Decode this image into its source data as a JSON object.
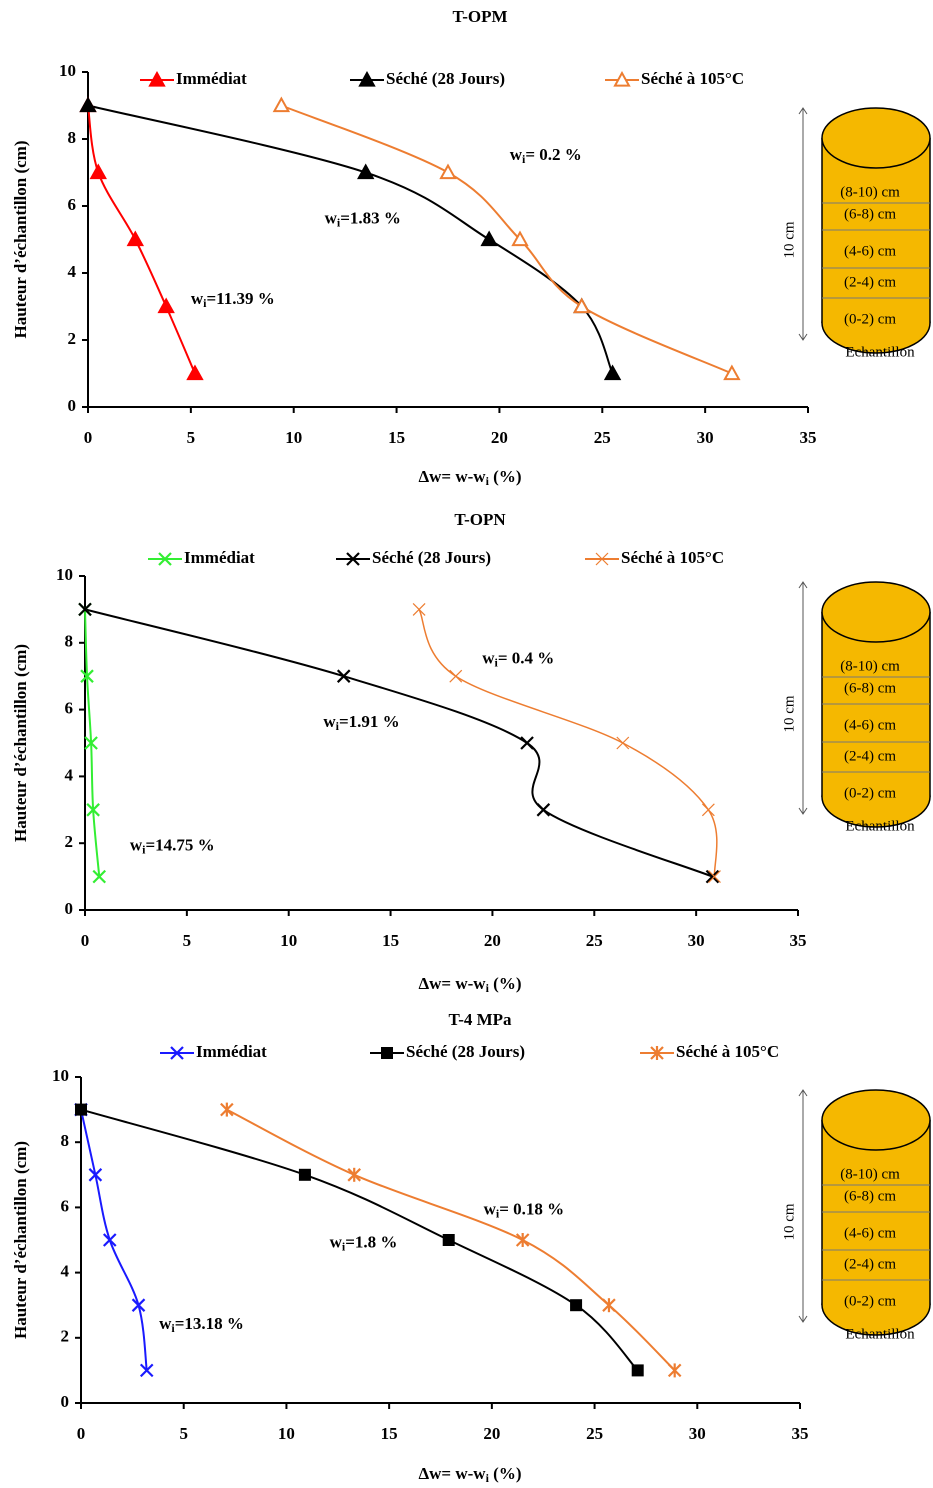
{
  "chart_data": [
    {
      "type": "line",
      "title": "T-OPM",
      "xlabel": [
        "Δw= w-w",
        "i",
        " (%)"
      ],
      "ylabel": "Hauteur d’échantillon (cm)",
      "xlim": [
        0,
        35
      ],
      "xticks": [
        0,
        5,
        10,
        15,
        20,
        25,
        30,
        35
      ],
      "ylim": [
        0,
        10
      ],
      "yticks": [
        0,
        2,
        4,
        6,
        8,
        10
      ],
      "series": [
        {
          "name": "Immédiat",
          "color": "#ff0000",
          "marker": "triangle",
          "x": [
            0,
            0.5,
            2.3,
            3.8,
            5.2
          ],
          "values": [
            9,
            7,
            5,
            3,
            1
          ]
        },
        {
          "name": "Séché (28 Jours)",
          "color": "#000000",
          "marker": "triangle",
          "x": [
            0,
            13.5,
            19.5,
            24,
            25.5
          ],
          "values": [
            9,
            7,
            5,
            3,
            1
          ]
        },
        {
          "name": "Séché à 105°C",
          "color": "#ed7d31",
          "marker": "triangle-open",
          "x": [
            9.4,
            17.5,
            21,
            24,
            31.3
          ],
          "values": [
            9,
            7,
            5,
            3,
            1
          ]
        }
      ],
      "annotations": [
        {
          "text": [
            "w",
            "i",
            "= 0.2 %"
          ]
        },
        {
          "text": [
            "w",
            "i",
            "=1.83 %"
          ]
        },
        {
          "text": [
            "w",
            "i",
            "=11.39 %"
          ]
        }
      ],
      "sample": {
        "layers": [
          "(8-10) cm",
          "(6-8) cm",
          "(4-6) cm",
          "(2-4) cm",
          "(0-2) cm"
        ],
        "size_label": "10 cm",
        "caption": "Echantillon"
      }
    },
    {
      "type": "line",
      "title": "T-OPN",
      "xlabel": [
        "Δw= w-w",
        "i",
        " (%)"
      ],
      "ylabel": "Hauteur d’échantillon (cm)",
      "xlim": [
        0,
        35
      ],
      "xticks": [
        0,
        5,
        10,
        15,
        20,
        25,
        30,
        35
      ],
      "ylim": [
        0,
        10
      ],
      "yticks": [
        0,
        2,
        4,
        6,
        8,
        10
      ],
      "series": [
        {
          "name": "Immédiat",
          "color": "#33ee33",
          "marker": "x",
          "x": [
            0,
            0.1,
            0.3,
            0.4,
            0.7
          ],
          "values": [
            9,
            7,
            5,
            3,
            1
          ]
        },
        {
          "name": "Séché (28 Jours)",
          "color": "#000000",
          "marker": "x",
          "x": [
            0,
            12.7,
            21.7,
            22.5,
            30.8
          ],
          "values": [
            9,
            7,
            5,
            3,
            1
          ]
        },
        {
          "name": "Séché à 105°C",
          "color": "#ed7d31",
          "marker": "x-thin",
          "x": [
            16.4,
            18.2,
            26.4,
            30.6,
            30.9
          ],
          "values": [
            9,
            7,
            5,
            3,
            1
          ]
        }
      ],
      "annotations": [
        {
          "text": [
            "w",
            "i",
            "= 0.4 %"
          ]
        },
        {
          "text": [
            "w",
            "i",
            "=1.91 %"
          ]
        },
        {
          "text": [
            "w",
            "i",
            "=14.75 %"
          ]
        }
      ],
      "sample": {
        "layers": [
          "(8-10) cm",
          "(6-8) cm",
          "(4-6) cm",
          "(2-4) cm",
          "(0-2) cm"
        ],
        "size_label": "10 cm",
        "caption": "Echantillon"
      }
    },
    {
      "type": "line",
      "title": "T-4 MPa",
      "xlabel": [
        "Δw= w-w",
        "i",
        " (%)"
      ],
      "ylabel": "Hauteur d’échantillon (cm)",
      "xlim": [
        0,
        35
      ],
      "xticks": [
        0,
        5,
        10,
        15,
        20,
        25,
        30,
        35
      ],
      "ylim": [
        0,
        10
      ],
      "yticks": [
        0,
        2,
        4,
        6,
        8,
        10
      ],
      "series": [
        {
          "name": "Immédiat",
          "color": "#1a1aff",
          "marker": "x",
          "x": [
            0,
            0.7,
            1.4,
            2.8,
            3.2
          ],
          "values": [
            9,
            7,
            5,
            3,
            1
          ]
        },
        {
          "name": "Séché (28 Jours)",
          "color": "#000000",
          "marker": "square",
          "x": [
            0,
            10.9,
            17.9,
            24.1,
            27.1
          ],
          "values": [
            9,
            7,
            5,
            3,
            1
          ]
        },
        {
          "name": "Séché à 105°C",
          "color": "#ed7d31",
          "marker": "asterisk",
          "x": [
            7.1,
            13.3,
            21.5,
            25.7,
            28.9
          ],
          "values": [
            9,
            7,
            5,
            3,
            1
          ]
        }
      ],
      "annotations": [
        {
          "text": [
            "w",
            "i",
            "= 0.18 %"
          ]
        },
        {
          "text": [
            "w",
            "i",
            "=1.8 %"
          ]
        },
        {
          "text": [
            "w",
            "i",
            "=13.18 %"
          ]
        }
      ],
      "sample": {
        "layers": [
          "(8-10) cm",
          "(6-8) cm",
          "(4-6) cm",
          "(2-4) cm",
          "(0-2) cm"
        ],
        "size_label": "10 cm",
        "caption": "Echantillon"
      }
    }
  ]
}
